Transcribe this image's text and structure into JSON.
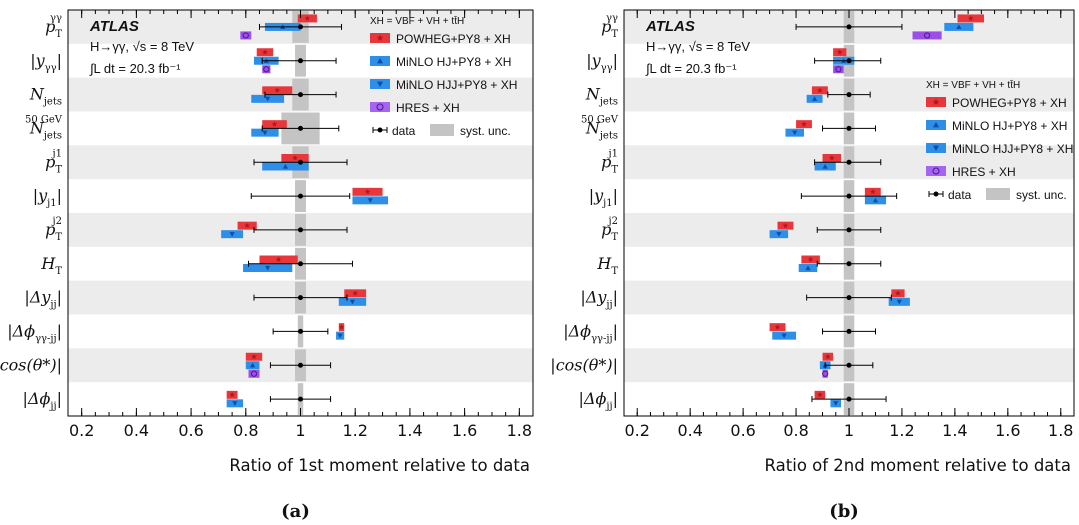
{
  "chart_data": [
    {
      "type": "scatter",
      "panel_label": "(a)",
      "xlabel": "Ratio of 1st moment relative to data",
      "xlim": [
        0.15,
        1.85
      ],
      "xticks": [
        "0.2",
        "0.4",
        "0.6",
        "0.8",
        "1",
        "1.2",
        "1.4",
        "1.6",
        "1.8"
      ],
      "experiment": "ATLAS",
      "process": "H→γγ, √s = 8 TeV",
      "lumi": "∫L dt = 20.3 fb⁻¹",
      "legend_header": "XH = VBF + VH + tt̄H",
      "legend_position": "top-right",
      "legend": [
        {
          "key": "powheg",
          "label": "POWHEG+PY8 + XH",
          "color": "#e8373a",
          "marker": "star"
        },
        {
          "key": "minlo_hj",
          "label": "MiNLO HJ+PY8 + XH",
          "color": "#2e8fe8",
          "marker": "triangle-up"
        },
        {
          "key": "minlo_hjj",
          "label": "MiNLO HJJ+PY8 + XH",
          "color": "#2e8fe8",
          "marker": "triangle-down"
        },
        {
          "key": "hres",
          "label": "HRES + XH",
          "color": "#9b4fe6",
          "marker": "circle"
        },
        {
          "key": "data",
          "label": "data",
          "color": "#000000",
          "marker": "dot"
        },
        {
          "key": "syst",
          "label": "syst. unc.",
          "color": "#c0c0c0",
          "marker": "box"
        }
      ],
      "rows": [
        {
          "label": "pTγγ",
          "data_err": [
            0.85,
            1.15
          ],
          "syst": [
            0.97,
            1.03
          ],
          "powheg": [
            0.99,
            1.06
          ],
          "minlo_hj": [
            0.87,
            1.0
          ],
          "minlo_hjj": null,
          "hres": [
            0.78,
            0.82
          ]
        },
        {
          "label": "|yγγ|",
          "data_err": [
            0.86,
            1.13
          ],
          "syst": [
            0.98,
            1.02
          ],
          "powheg": [
            0.84,
            0.9
          ],
          "minlo_hj": [
            0.83,
            0.92
          ],
          "minlo_hjj": null,
          "hres": [
            0.86,
            0.89
          ]
        },
        {
          "label": "Njets",
          "data_err": [
            0.87,
            1.13
          ],
          "syst": [
            0.97,
            1.03
          ],
          "powheg": [
            0.86,
            0.97
          ],
          "minlo_hj": null,
          "minlo_hjj": [
            0.82,
            0.94
          ]
        },
        {
          "label": "Njets50 GeV",
          "data_err": [
            0.86,
            1.14
          ],
          "syst": [
            0.93,
            1.07
          ],
          "powheg": [
            0.86,
            0.95
          ],
          "minlo_hj": null,
          "minlo_hjj": [
            0.82,
            0.92
          ]
        },
        {
          "label": "pTj1",
          "data_err": [
            0.83,
            1.17
          ],
          "syst": [
            0.97,
            1.03
          ],
          "powheg": [
            0.93,
            1.03
          ],
          "minlo_hj": [
            0.86,
            1.03
          ],
          "minlo_hjj": null
        },
        {
          "label": "|yj1|",
          "data_err": [
            0.82,
            1.18
          ],
          "syst": [
            0.98,
            1.02
          ],
          "powheg": [
            1.19,
            1.3
          ],
          "minlo_hj": null,
          "minlo_hjj": [
            1.19,
            1.32
          ]
        },
        {
          "label": "pTj2",
          "data_err": [
            0.83,
            1.17
          ],
          "syst": [
            0.98,
            1.02
          ],
          "powheg": [
            0.77,
            0.84
          ],
          "minlo_hj": null,
          "minlo_hjj": [
            0.71,
            0.79
          ]
        },
        {
          "label": "HT",
          "data_err": [
            0.81,
            1.19
          ],
          "syst": [
            0.98,
            1.02
          ],
          "powheg": [
            0.85,
            0.99
          ],
          "minlo_hj": null,
          "minlo_hjj": [
            0.79,
            0.97
          ]
        },
        {
          "label": "|Δyjj|",
          "data_err": [
            0.83,
            1.17
          ],
          "syst": [
            0.98,
            1.02
          ],
          "powheg": [
            1.16,
            1.24
          ],
          "minlo_hj": null,
          "minlo_hjj": [
            1.14,
            1.24
          ]
        },
        {
          "label": "|Δϕγγ-jj|",
          "data_err": [
            0.9,
            1.1
          ],
          "syst": [
            0.99,
            1.01
          ],
          "powheg": [
            1.14,
            1.16
          ],
          "minlo_hj": null,
          "minlo_hjj": [
            1.13,
            1.16
          ]
        },
        {
          "label": "|cos(θ*)|",
          "data_err": [
            0.89,
            1.11
          ],
          "syst": [
            0.98,
            1.02
          ],
          "powheg": [
            0.8,
            0.86
          ],
          "minlo_hj": [
            0.8,
            0.85
          ],
          "minlo_hjj": null,
          "hres": [
            0.81,
            0.85
          ]
        },
        {
          "label": "|Δϕjj|",
          "data_err": [
            0.89,
            1.11
          ],
          "syst": [
            0.99,
            1.01
          ],
          "powheg": [
            0.73,
            0.77
          ],
          "minlo_hj": null,
          "minlo_hjj": [
            0.73,
            0.79
          ]
        }
      ]
    },
    {
      "type": "scatter",
      "panel_label": "(b)",
      "xlabel": "Ratio of 2nd moment relative to data",
      "xlim": [
        0.15,
        1.85
      ],
      "xticks": [
        "0.2",
        "0.4",
        "0.6",
        "0.8",
        "1",
        "1.2",
        "1.4",
        "1.6",
        "1.8"
      ],
      "experiment": "ATLAS",
      "process": "H→γγ, √s = 8 TeV",
      "lumi": "∫L dt = 20.3 fb⁻¹",
      "legend_header": "XH = VBF + VH + tt̄H",
      "legend_position": "right",
      "legend": [
        {
          "key": "powheg",
          "label": "POWHEG+PY8 + XH",
          "color": "#e8373a",
          "marker": "star"
        },
        {
          "key": "minlo_hj",
          "label": "MiNLO HJ+PY8 + XH",
          "color": "#2e8fe8",
          "marker": "triangle-up"
        },
        {
          "key": "minlo_hjj",
          "label": "MiNLO HJJ+PY8 + XH",
          "color": "#2e8fe8",
          "marker": "triangle-down"
        },
        {
          "key": "hres",
          "label": "HRES + XH",
          "color": "#9b4fe6",
          "marker": "circle"
        },
        {
          "key": "data",
          "label": "data",
          "color": "#000000",
          "marker": "dot"
        },
        {
          "key": "syst",
          "label": "syst. unc.",
          "color": "#c0c0c0",
          "marker": "box"
        }
      ],
      "rows": [
        {
          "label": "pTγγ",
          "data_err": [
            0.8,
            1.2
          ],
          "syst": [
            0.98,
            1.02
          ],
          "powheg": [
            1.41,
            1.51
          ],
          "minlo_hj": [
            1.36,
            1.47
          ],
          "minlo_hjj": null,
          "hres": [
            1.24,
            1.35
          ]
        },
        {
          "label": "|yγγ|",
          "data_err": [
            0.87,
            1.12
          ],
          "syst": [
            0.98,
            1.02
          ],
          "powheg": [
            0.94,
            0.99
          ],
          "minlo_hj": [
            0.94,
            1.02
          ],
          "minlo_hjj": null,
          "hres": [
            0.94,
            0.98
          ]
        },
        {
          "label": "Njets",
          "data_err": [
            0.92,
            1.08
          ],
          "syst": [
            0.98,
            1.02
          ],
          "powheg": [
            0.86,
            0.92
          ],
          "minlo_hj": [
            0.84,
            0.9
          ],
          "minlo_hjj": null
        },
        {
          "label": "Njets50 GeV",
          "data_err": [
            0.9,
            1.1
          ],
          "syst": [
            0.98,
            1.02
          ],
          "powheg": [
            0.8,
            0.86
          ],
          "minlo_hj": null,
          "minlo_hjj": [
            0.76,
            0.83
          ]
        },
        {
          "label": "pTj1",
          "data_err": [
            0.87,
            1.12
          ],
          "syst": [
            0.98,
            1.02
          ],
          "powheg": [
            0.9,
            0.97
          ],
          "minlo_hj": [
            0.87,
            0.95
          ],
          "minlo_hjj": null
        },
        {
          "label": "|yj1|",
          "data_err": [
            0.82,
            1.18
          ],
          "syst": [
            0.98,
            1.02
          ],
          "powheg": [
            1.06,
            1.12
          ],
          "minlo_hj": [
            1.06,
            1.14
          ],
          "minlo_hjj": null
        },
        {
          "label": "pTj2",
          "data_err": [
            0.88,
            1.12
          ],
          "syst": [
            0.98,
            1.02
          ],
          "powheg": [
            0.73,
            0.79
          ],
          "minlo_hj": null,
          "minlo_hjj": [
            0.7,
            0.77
          ]
        },
        {
          "label": "HT",
          "data_err": [
            0.88,
            1.12
          ],
          "syst": [
            0.98,
            1.02
          ],
          "powheg": [
            0.82,
            0.89
          ],
          "minlo_hj": [
            0.81,
            0.88
          ],
          "minlo_hjj": null
        },
        {
          "label": "|Δyjj|",
          "data_err": [
            0.84,
            1.16
          ],
          "syst": [
            0.98,
            1.02
          ],
          "powheg": [
            1.16,
            1.21
          ],
          "minlo_hj": null,
          "minlo_hjj": [
            1.15,
            1.23
          ]
        },
        {
          "label": "|Δϕγγ-jj|",
          "data_err": [
            0.9,
            1.1
          ],
          "syst": [
            0.98,
            1.02
          ],
          "powheg": [
            0.7,
            0.76
          ],
          "minlo_hj": null,
          "minlo_hjj": [
            0.71,
            0.8
          ]
        },
        {
          "label": "|cos(θ*)|",
          "data_err": [
            0.91,
            1.09
          ],
          "syst": [
            0.98,
            1.02
          ],
          "powheg": [
            0.9,
            0.94
          ],
          "minlo_hj": [
            0.89,
            0.93
          ],
          "minlo_hjj": null,
          "hres": [
            0.9,
            0.92
          ]
        },
        {
          "label": "|Δϕjj|",
          "data_err": [
            0.86,
            1.14
          ],
          "syst": [
            0.98,
            1.02
          ],
          "powheg": [
            0.87,
            0.91
          ],
          "minlo_hj": null,
          "minlo_hjj": [
            0.93,
            0.97
          ]
        }
      ]
    }
  ]
}
